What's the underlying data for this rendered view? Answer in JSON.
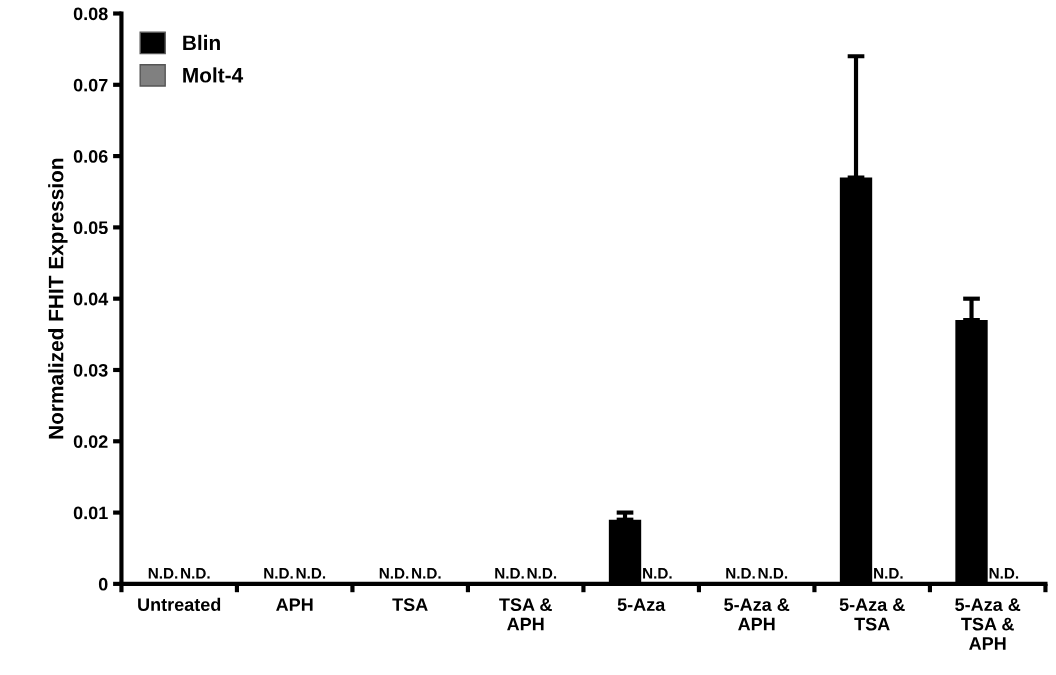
{
  "chart_data": {
    "type": "bar",
    "ylabel": "Normalized FHIT Expression",
    "categories": [
      "Untreated",
      "APH",
      "TSA",
      "TSA &\nAPH",
      "5-Aza",
      "5-Aza &\nAPH",
      "5-Aza &\nTSA",
      "5-Aza &\nTSA &\nAPH"
    ],
    "series": [
      {
        "name": "Blin",
        "color": "#000000",
        "values": [
          null,
          null,
          null,
          null,
          0.009,
          null,
          0.057,
          0.037
        ],
        "errors": [
          null,
          null,
          null,
          null,
          0.001,
          null,
          0.017,
          0.003
        ],
        "value_labels": [
          "N.D.",
          "N.D.",
          "N.D.",
          "N.D.",
          null,
          "N.D.",
          null,
          null
        ]
      },
      {
        "name": "Molt-4",
        "color": "#808080",
        "values": [
          null,
          null,
          null,
          null,
          null,
          null,
          null,
          null
        ],
        "value_labels": [
          "N.D.",
          "N.D.",
          "N.D.",
          "N.D.",
          "N.D.",
          "N.D.",
          "N.D.",
          "N.D."
        ]
      }
    ],
    "ylim": [
      0,
      0.08
    ],
    "yticks": [
      0,
      0.01,
      0.02,
      0.03,
      0.04,
      0.05,
      0.06,
      0.07,
      0.08
    ],
    "legend": "top left",
    "grid": false
  }
}
